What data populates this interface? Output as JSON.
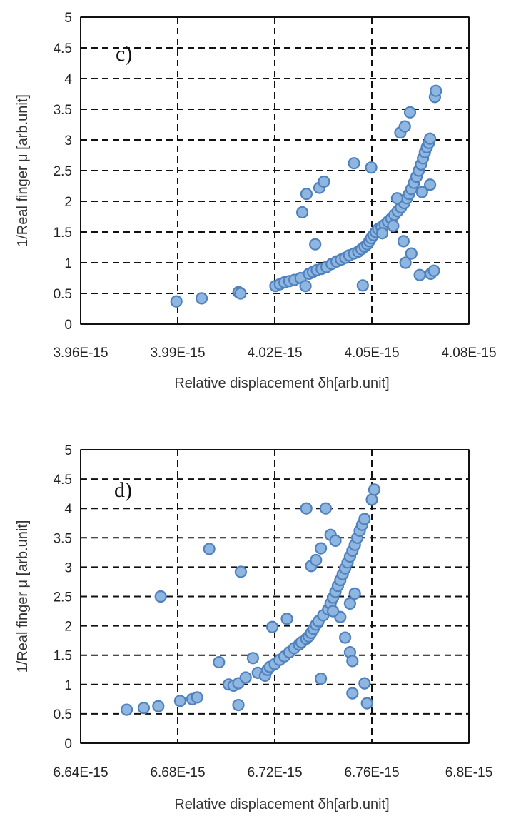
{
  "chart_data": [
    {
      "type": "scatter",
      "panel_label": "c)",
      "xlabel": "Relative displacement δh[arb.unit]",
      "ylabel": "1/Real finger μ  [arb.unit]",
      "xlim": [
        3.96e-15,
        4.08e-15
      ],
      "ylim": [
        0,
        5
      ],
      "x_tick_labels": [
        "3.96E-15",
        "3.99E-15",
        "4.02E-15",
        "4.05E-15",
        "4.08E-15"
      ],
      "y_tick_labels": [
        "0",
        "0.5",
        "1",
        "1.5",
        "2",
        "2.5",
        "3",
        "3.5",
        "4",
        "4.5",
        "5"
      ],
      "grid": true,
      "marker_color": "#8fb6e0",
      "marker_edge": "#4f82bd",
      "points": [
        [
          3.9896e-15,
          0.37
        ],
        [
          3.9974e-15,
          0.42
        ],
        [
          4.0088e-15,
          0.52
        ],
        [
          4.0094e-15,
          0.5
        ],
        [
          4.0202e-15,
          0.62
        ],
        [
          4.0216e-15,
          0.65
        ],
        [
          4.023e-15,
          0.68
        ],
        [
          4.0245e-15,
          0.7
        ],
        [
          4.0261e-15,
          0.72
        ],
        [
          4.028e-15,
          0.75
        ],
        [
          4.0295e-15,
          0.62
        ],
        [
          4.0306e-15,
          0.82
        ],
        [
          4.0318e-15,
          0.85
        ],
        [
          4.033e-15,
          0.88
        ],
        [
          4.0345e-15,
          0.9
        ],
        [
          4.036e-15,
          0.93
        ],
        [
          4.0376e-15,
          0.98
        ],
        [
          4.0391e-15,
          1.02
        ],
        [
          4.0405e-15,
          1.05
        ],
        [
          4.0418e-15,
          1.08
        ],
        [
          4.043e-15,
          1.12
        ],
        [
          4.0445e-15,
          1.15
        ],
        [
          4.0458e-15,
          1.18
        ],
        [
          4.0468e-15,
          1.22
        ],
        [
          4.0478e-15,
          1.26
        ],
        [
          4.0486e-15,
          1.3
        ],
        [
          4.0492e-15,
          1.35
        ],
        [
          4.0498e-15,
          1.4
        ],
        [
          4.0505e-15,
          1.45
        ],
        [
          4.0512e-15,
          1.5
        ],
        [
          4.052e-15,
          1.55
        ],
        [
          4.053e-15,
          1.58
        ],
        [
          4.054e-15,
          1.62
        ],
        [
          4.055e-15,
          1.67
        ],
        [
          4.056e-15,
          1.72
        ],
        [
          4.057e-15,
          1.78
        ],
        [
          4.058e-15,
          1.84
        ],
        [
          4.059e-15,
          1.9
        ],
        [
          4.06e-15,
          1.97
        ],
        [
          4.0608e-15,
          2.05
        ],
        [
          4.0615e-15,
          2.12
        ],
        [
          4.0622e-15,
          2.2
        ],
        [
          4.063e-15,
          2.3
        ],
        [
          4.0638e-15,
          2.4
        ],
        [
          4.0645e-15,
          2.5
        ],
        [
          4.0652e-15,
          2.6
        ],
        [
          4.0658e-15,
          2.7
        ],
        [
          4.0664e-15,
          2.8
        ],
        [
          4.067e-15,
          2.88
        ],
        [
          4.0676e-15,
          2.95
        ],
        [
          4.068e-15,
          3.02
        ],
        [
          4.0285e-15,
          1.82
        ],
        [
          4.0298e-15,
          2.12
        ],
        [
          4.0338e-15,
          2.22
        ],
        [
          4.0352e-15,
          2.32
        ],
        [
          4.0325e-15,
          1.3
        ],
        [
          4.0445e-15,
          2.62
        ],
        [
          4.0498e-15,
          2.55
        ],
        [
          4.0472e-15,
          0.63
        ],
        [
          4.0588e-15,
          3.12
        ],
        [
          4.0602e-15,
          3.22
        ],
        [
          4.0618e-15,
          3.45
        ],
        [
          4.0598e-15,
          1.35
        ],
        [
          4.0604e-15,
          1.0
        ],
        [
          4.0622e-15,
          1.15
        ],
        [
          4.0648e-15,
          0.8
        ],
        [
          4.0682e-15,
          0.82
        ],
        [
          4.0692e-15,
          0.87
        ],
        [
          4.068e-15,
          2.27
        ],
        [
          4.0695e-15,
          3.7
        ],
        [
          4.0698e-15,
          3.8
        ],
        [
          4.0578e-15,
          2.05
        ],
        [
          4.0655e-15,
          2.15
        ],
        [
          4.0566e-15,
          1.6
        ],
        [
          4.0532e-15,
          1.48
        ]
      ]
    },
    {
      "type": "scatter",
      "panel_label": "d)",
      "xlabel": "Relative displacement δh[arb.unit]",
      "ylabel": "1/Real finger μ  [arb.unit]",
      "xlim": [
        6.64e-15,
        6.8e-15
      ],
      "ylim": [
        0,
        5
      ],
      "x_tick_labels": [
        "6.64E-15",
        "6.68E-15",
        "6.72E-15",
        "6.76E-15",
        "6.8E-15"
      ],
      "y_tick_labels": [
        "0",
        "0.5",
        "1",
        "1.5",
        "2",
        "2.5",
        "3",
        "3.5",
        "4",
        "4.5",
        "5"
      ],
      "grid": true,
      "marker_color": "#8fb6e0",
      "marker_edge": "#4f82bd",
      "points": [
        [
          6.659e-15,
          0.57
        ],
        [
          6.666e-15,
          0.6
        ],
        [
          6.672e-15,
          0.63
        ],
        [
          6.681e-15,
          0.72
        ],
        [
          6.686e-15,
          0.75
        ],
        [
          6.688e-15,
          0.78
        ],
        [
          6.673e-15,
          2.5
        ],
        [
          6.693e-15,
          3.31
        ],
        [
          6.697e-15,
          1.38
        ],
        [
          6.701e-15,
          1.0
        ],
        [
          6.703e-15,
          0.98
        ],
        [
          6.705e-15,
          1.02
        ],
        [
          6.705e-15,
          0.65
        ],
        [
          6.708e-15,
          1.12
        ],
        [
          6.706e-15,
          2.92
        ],
        [
          6.711e-15,
          1.45
        ],
        [
          6.713e-15,
          1.2
        ],
        [
          6.716e-15,
          1.15
        ],
        [
          6.717e-15,
          1.25
        ],
        [
          6.718e-15,
          1.3
        ],
        [
          6.719e-15,
          1.98
        ],
        [
          6.72e-15,
          1.35
        ],
        [
          6.722e-15,
          1.42
        ],
        [
          6.724e-15,
          1.48
        ],
        [
          6.726e-15,
          1.55
        ],
        [
          6.728e-15,
          1.62
        ],
        [
          6.73e-15,
          1.68
        ],
        [
          6.731e-15,
          1.72
        ],
        [
          6.733e-15,
          1.78
        ],
        [
          6.734e-15,
          1.82
        ],
        [
          6.735e-15,
          1.88
        ],
        [
          6.736e-15,
          1.95
        ],
        [
          6.737e-15,
          2.02
        ],
        [
          6.738e-15,
          2.08
        ],
        [
          6.74e-15,
          2.18
        ],
        [
          6.742e-15,
          2.28
        ],
        [
          6.743e-15,
          2.38
        ],
        [
          6.744e-15,
          2.48
        ],
        [
          6.745e-15,
          2.58
        ],
        [
          6.746e-15,
          2.68
        ],
        [
          6.747e-15,
          2.78
        ],
        [
          6.748e-15,
          2.88
        ],
        [
          6.749e-15,
          2.98
        ],
        [
          6.75e-15,
          3.08
        ],
        [
          6.751e-15,
          3.18
        ],
        [
          6.752e-15,
          3.28
        ],
        [
          6.753e-15,
          3.38
        ],
        [
          6.754e-15,
          3.5
        ],
        [
          6.755e-15,
          3.62
        ],
        [
          6.756e-15,
          3.72
        ],
        [
          6.757e-15,
          3.82
        ],
        [
          6.76e-15,
          4.15
        ],
        [
          6.761e-15,
          4.32
        ],
        [
          6.725e-15,
          2.12
        ],
        [
          6.735e-15,
          3.02
        ],
        [
          6.737e-15,
          3.12
        ],
        [
          6.739e-15,
          3.32
        ],
        [
          6.733e-15,
          4.0
        ],
        [
          6.741e-15,
          4.0
        ],
        [
          6.743e-15,
          3.55
        ],
        [
          6.745e-15,
          3.45
        ],
        [
          6.739e-15,
          1.1
        ],
        [
          6.747e-15,
          2.15
        ],
        [
          6.751e-15,
          2.38
        ],
        [
          6.753e-15,
          2.55
        ],
        [
          6.749e-15,
          1.8
        ],
        [
          6.751e-15,
          1.55
        ],
        [
          6.752e-15,
          1.4
        ],
        [
          6.752e-15,
          0.85
        ],
        [
          6.757e-15,
          1.02
        ],
        [
          6.758e-15,
          0.68
        ],
        [
          6.744e-15,
          2.25
        ]
      ]
    }
  ]
}
